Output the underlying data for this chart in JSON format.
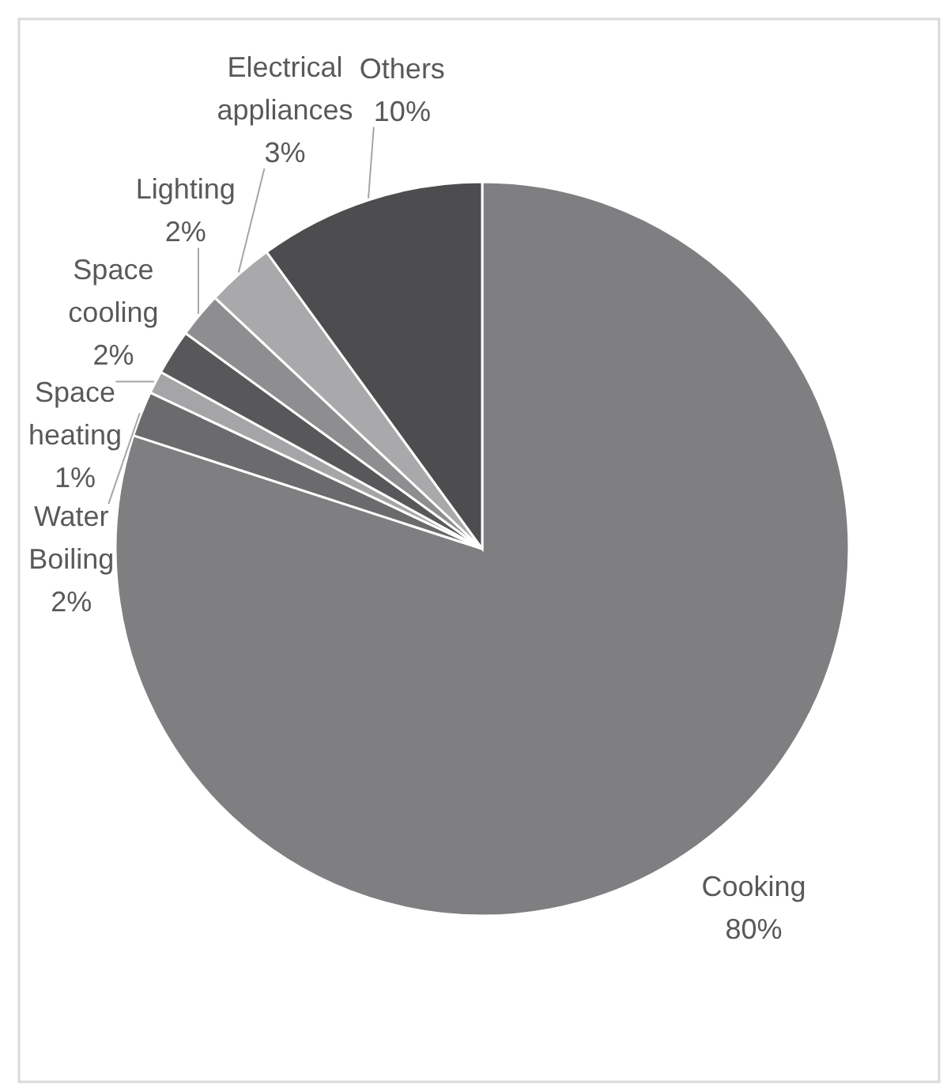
{
  "chart_data": {
    "type": "pie",
    "categories": [
      "Cooking",
      "Water Boiling",
      "Space heating",
      "Space cooling",
      "Lighting",
      "Electrical appliances",
      "Others"
    ],
    "values": [
      80,
      2,
      1,
      2,
      2,
      3,
      10
    ],
    "value_labels": [
      "80%",
      "2%",
      "1%",
      "2%",
      "2%",
      "3%",
      "10%"
    ],
    "colors": [
      "#7f7f81",
      "#6b6b6d",
      "#a5a5a7",
      "#58585a",
      "#8e8e90",
      "#a9a9ab",
      "#4d4d4f"
    ]
  }
}
